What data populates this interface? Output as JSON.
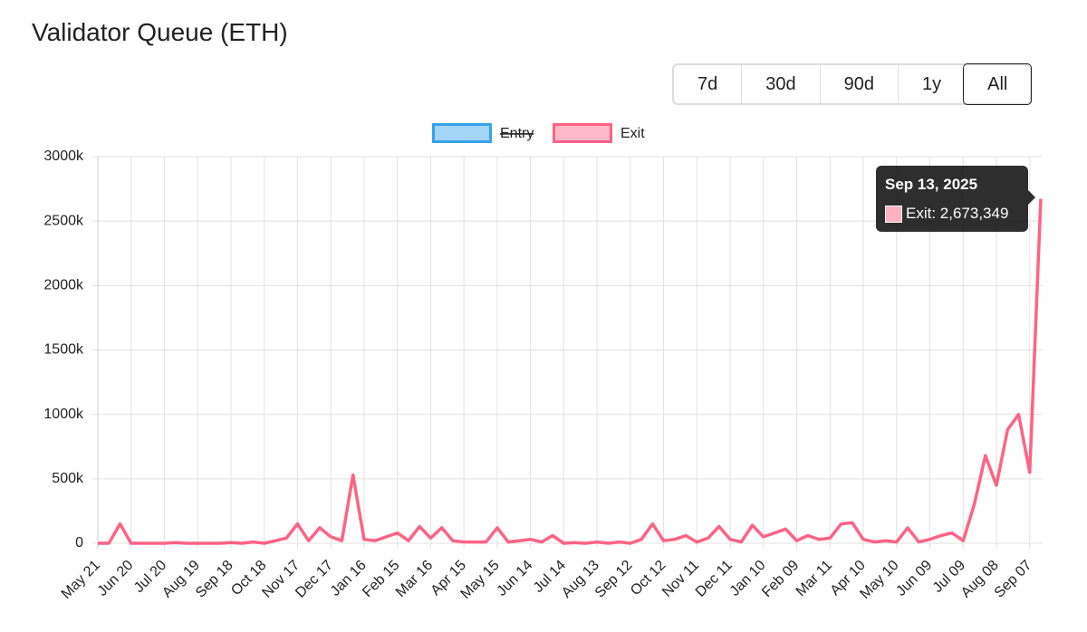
{
  "title": "Validator Queue (ETH)",
  "range_buttons": [
    {
      "label": "7d"
    },
    {
      "label": "30d"
    },
    {
      "label": "90d"
    },
    {
      "label": "1y"
    },
    {
      "label": "All",
      "active": true
    }
  ],
  "chart_data": {
    "type": "line",
    "categories": [
      "May 21",
      null,
      null,
      "Jun 20",
      null,
      null,
      "Jul 20",
      null,
      null,
      "Aug 19",
      null,
      null,
      "Sep 18",
      null,
      null,
      "Oct 18",
      null,
      null,
      "Nov 17",
      null,
      null,
      "Dec 17",
      null,
      null,
      "Jan 16",
      null,
      null,
      "Feb 15",
      null,
      null,
      "Mar 16",
      null,
      null,
      "Apr 15",
      null,
      null,
      "May 15",
      null,
      null,
      "Jun 14",
      null,
      null,
      "Jul 14",
      null,
      null,
      "Aug 13",
      null,
      null,
      "Sep 12",
      null,
      null,
      "Oct 12",
      null,
      null,
      "Nov 11",
      null,
      null,
      "Dec 11",
      null,
      null,
      "Jan 10",
      null,
      null,
      "Feb 09",
      null,
      null,
      "Mar 11",
      null,
      null,
      "Apr 10",
      null,
      null,
      "May 10",
      null,
      null,
      "Jun 09",
      null,
      null,
      "Jul 09",
      null,
      null,
      "Aug 08",
      null,
      null,
      "Sep 07",
      null
    ],
    "series": [
      {
        "name": "Entry",
        "color": "#36a2eb",
        "hidden": true
      },
      {
        "name": "Exit",
        "color": "#ff6384",
        "values": [
          0,
          0,
          150000,
          0,
          0,
          0,
          0,
          5000,
          0,
          0,
          0,
          0,
          5000,
          0,
          10000,
          0,
          20000,
          40000,
          150000,
          20000,
          120000,
          50000,
          20000,
          530000,
          30000,
          20000,
          50000,
          80000,
          20000,
          130000,
          40000,
          120000,
          20000,
          10000,
          10000,
          10000,
          120000,
          10000,
          20000,
          30000,
          10000,
          60000,
          0,
          5000,
          0,
          10000,
          0,
          10000,
          0,
          30000,
          150000,
          20000,
          30000,
          60000,
          10000,
          40000,
          130000,
          30000,
          10000,
          140000,
          50000,
          80000,
          110000,
          20000,
          60000,
          30000,
          40000,
          150000,
          160000,
          30000,
          10000,
          20000,
          10000,
          120000,
          10000,
          30000,
          60000,
          80000,
          20000,
          300000,
          680000,
          450000,
          880000,
          1000000,
          550000,
          2673349
        ],
        "value_labels": [
          null,
          null,
          null,
          null,
          null,
          null,
          null,
          null,
          null,
          null,
          null,
          null,
          null,
          null,
          null,
          null,
          null,
          null,
          null,
          null,
          null,
          null,
          null,
          null,
          null,
          null,
          null,
          null,
          null,
          null,
          null,
          null,
          null,
          null,
          null,
          null,
          null,
          null,
          null,
          null,
          null,
          null,
          null,
          null,
          null,
          null,
          null,
          null,
          null,
          null,
          null,
          null,
          null,
          null,
          null,
          null,
          null,
          null,
          null,
          null,
          null,
          null,
          null,
          null,
          null,
          null,
          null,
          null,
          null,
          null,
          null,
          null,
          null,
          null,
          null,
          null,
          null,
          null,
          null,
          null,
          null,
          null,
          null,
          null,
          null,
          "2,673,349"
        ]
      }
    ],
    "ylim": [
      0,
      3000000
    ],
    "yticks": [
      0,
      {
        "value": 500000,
        "label": "500k"
      },
      {
        "value": 1000000,
        "label": "1000k"
      },
      {
        "value": 1500000,
        "label": "1500k"
      },
      {
        "value": 2000000,
        "label": "2000k"
      },
      {
        "value": 2500000,
        "label": "2500k"
      },
      {
        "value": 3000000,
        "label": "3000k"
      }
    ],
    "grid": true,
    "legend": "top",
    "tooltip": {
      "title": "Sep 13, 2025",
      "series": 1,
      "index": 85
    }
  }
}
